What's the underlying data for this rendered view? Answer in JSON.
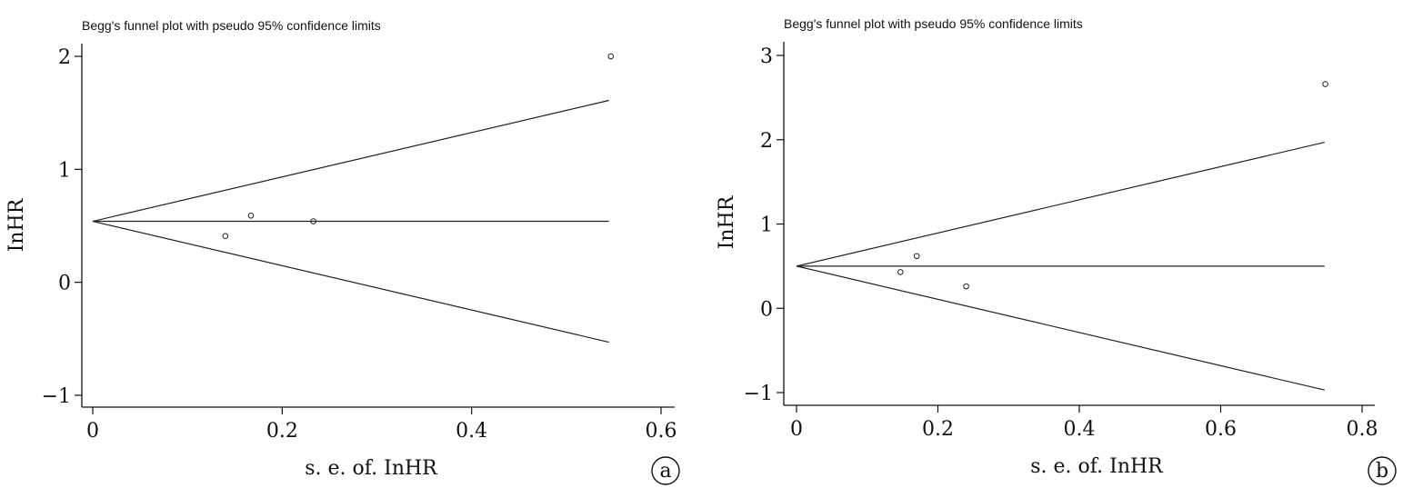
{
  "chart_data": [
    {
      "type": "scatter",
      "panel_label": "a",
      "title": "Begg's funnel plot with pseudo 95% confidence limits",
      "xlabel": "s. e. of. InHR",
      "ylabel": "InHR",
      "xlim": [
        0,
        0.6
      ],
      "ylim": [
        -1,
        2
      ],
      "xticks": [
        "0",
        "0.2",
        "0.4",
        "0.6"
      ],
      "yticks": [
        "-1",
        "0",
        "1",
        "2"
      ],
      "pooled_estimate": 0.54,
      "funnel_max_se": 0.545,
      "funnel_upper_end": 1.61,
      "funnel_lower_end": -0.53,
      "points": [
        {
          "x": 0.14,
          "y": 0.41
        },
        {
          "x": 0.167,
          "y": 0.59
        },
        {
          "x": 0.233,
          "y": 0.54
        },
        {
          "x": 0.547,
          "y": 2.0
        }
      ]
    },
    {
      "type": "scatter",
      "panel_label": "b",
      "title": "Begg's funnel plot with pseudo 95% confidence limits",
      "xlabel": "s. e. of. InHR",
      "ylabel": "InHR",
      "xlim": [
        0,
        0.8
      ],
      "ylim": [
        -1,
        3
      ],
      "xticks": [
        "0",
        "0.2",
        "0.4",
        "0.6",
        "0.8"
      ],
      "yticks": [
        "-1",
        "0",
        "1",
        "2",
        "3"
      ],
      "pooled_estimate": 0.5,
      "funnel_max_se": 0.747,
      "funnel_upper_end": 1.97,
      "funnel_lower_end": -0.97,
      "points": [
        {
          "x": 0.147,
          "y": 0.43
        },
        {
          "x": 0.17,
          "y": 0.62
        },
        {
          "x": 0.24,
          "y": 0.26
        },
        {
          "x": 0.748,
          "y": 2.66
        }
      ]
    }
  ]
}
